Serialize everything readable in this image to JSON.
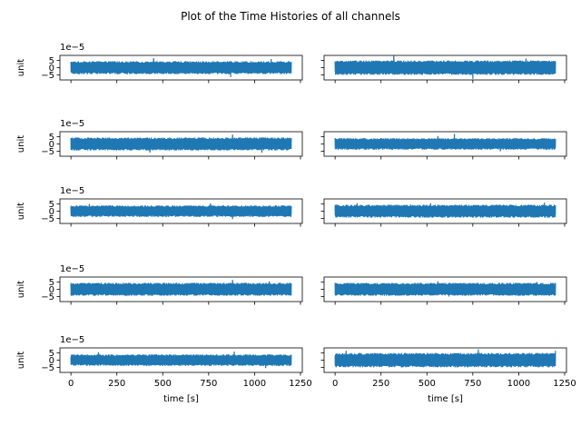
{
  "chart_data": {
    "type": "line",
    "title": "Plot of the Time Histories of all channels",
    "layout": {
      "rows": 5,
      "cols": 2,
      "sharex": true,
      "sharey": true
    },
    "xlabel": "time [s]",
    "ylabel": "unit",
    "offset_text": "1e−5",
    "xlim": [
      -60,
      1260
    ],
    "ylim": [
      -8.5,
      8.5
    ],
    "xticks": [
      0,
      250,
      500,
      750,
      1000,
      1250
    ],
    "xtick_labels": [
      "0",
      "250",
      "500",
      "750",
      "1000",
      "1250"
    ],
    "yticks": [
      5,
      0,
      -5
    ],
    "ytick_labels": [
      "5",
      "0",
      "−5"
    ],
    "series_color": "#1f77b4",
    "x_range": [
      0,
      1200
    ],
    "channels": [
      {
        "row": 0,
        "col": 0,
        "band": [
          -4.5,
          4.5
        ],
        "peaks": [
          [
            450,
            6.5
          ],
          [
            870,
            -6.5
          ],
          [
            1090,
            6.0
          ]
        ]
      },
      {
        "row": 0,
        "col": 1,
        "band": [
          -5.0,
          5.0
        ],
        "peaks": [
          [
            320,
            8.2
          ],
          [
            750,
            -7.8
          ],
          [
            1040,
            6.3
          ]
        ]
      },
      {
        "row": 1,
        "col": 0,
        "band": [
          -4.5,
          4.5
        ],
        "peaks": [
          [
            430,
            -6.0
          ],
          [
            880,
            6.5
          ],
          [
            1040,
            -6.0
          ]
        ]
      },
      {
        "row": 1,
        "col": 1,
        "band": [
          -4.0,
          4.0
        ],
        "peaks": [
          [
            650,
            7.0
          ],
          [
            560,
            5.5
          ],
          [
            900,
            -5.0
          ]
        ]
      },
      {
        "row": 2,
        "col": 0,
        "band": [
          -4.0,
          4.0
        ],
        "peaks": [
          [
            100,
            5.0
          ],
          [
            760,
            5.5
          ],
          [
            880,
            -5.5
          ]
        ]
      },
      {
        "row": 2,
        "col": 1,
        "band": [
          -4.5,
          4.5
        ],
        "peaks": [
          [
            120,
            5.5
          ],
          [
            520,
            5.5
          ],
          [
            1140,
            6.0
          ]
        ]
      },
      {
        "row": 3,
        "col": 0,
        "band": [
          -4.5,
          4.5
        ],
        "peaks": [
          [
            880,
            6.5
          ],
          [
            1080,
            5.5
          ],
          [
            300,
            -4.5
          ]
        ]
      },
      {
        "row": 3,
        "col": 1,
        "band": [
          -4.5,
          4.5
        ],
        "peaks": [
          [
            560,
            5.5
          ],
          [
            620,
            -5.0
          ],
          [
            1100,
            5.0
          ]
        ]
      },
      {
        "row": 4,
        "col": 0,
        "band": [
          -4.0,
          4.0
        ],
        "peaks": [
          [
            150,
            5.5
          ],
          [
            890,
            6.0
          ],
          [
            1060,
            -5.5
          ]
        ]
      },
      {
        "row": 4,
        "col": 1,
        "band": [
          -5.0,
          5.0
        ],
        "peaks": [
          [
            780,
            7.5
          ],
          [
            60,
            6.5
          ],
          [
            1200,
            6.5
          ]
        ]
      }
    ]
  }
}
